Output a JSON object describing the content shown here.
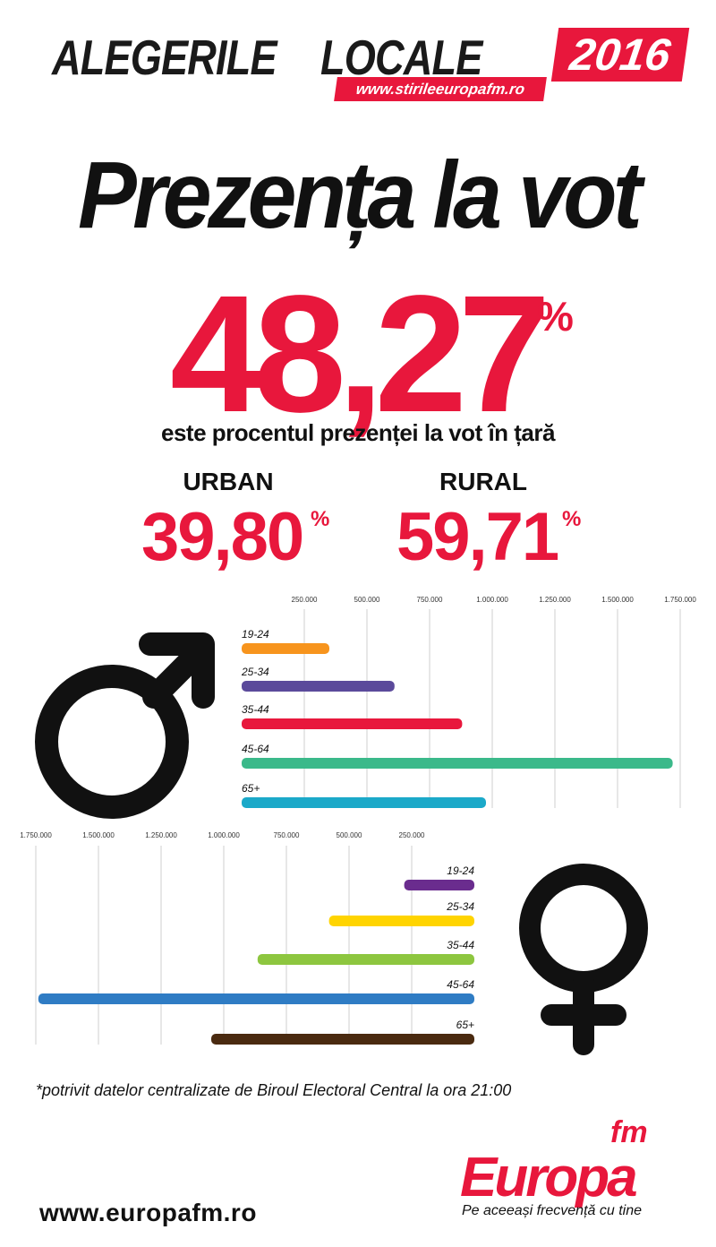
{
  "header": {
    "title_word1": "ALEGERILE",
    "title_word2": "LOCALE",
    "year": "2016",
    "url": "www.stirileeuropafm.ro"
  },
  "title": "Prezența la vot",
  "overall": {
    "value": "48,27",
    "unit": "%",
    "caption": "este procentul prezenței la vot în țară"
  },
  "urban": {
    "label": "URBAN",
    "value": "39,80",
    "unit": "%"
  },
  "rural": {
    "label": "RURAL",
    "value": "59,71",
    "unit": "%"
  },
  "chart_data": [
    {
      "type": "bar",
      "orientation": "horizontal",
      "direction": "left-to-right",
      "group": "male",
      "icon": "male-symbol-icon",
      "categories": [
        "19-24",
        "25-34",
        "35-44",
        "45-64",
        "65+"
      ],
      "values": [
        350000,
        610000,
        880000,
        1720000,
        975000
      ],
      "colors": [
        "#f7941d",
        "#5b4a9b",
        "#e8173c",
        "#3bb98a",
        "#1ba9c9"
      ],
      "ticks": [
        250000,
        500000,
        750000,
        1000000,
        1250000,
        1500000,
        1750000
      ],
      "tick_labels": [
        "250.000",
        "500.000",
        "750.000",
        "1.000.000",
        "1.250.000",
        "1.500.000",
        "1.750.000"
      ],
      "xlim": [
        0,
        1750000
      ],
      "grid": true
    },
    {
      "type": "bar",
      "orientation": "horizontal",
      "direction": "right-to-left",
      "group": "female",
      "icon": "female-symbol-icon",
      "categories": [
        "19-24",
        "25-34",
        "35-44",
        "45-64",
        "65+"
      ],
      "values": [
        280000,
        580000,
        865000,
        1740000,
        1050000
      ],
      "colors": [
        "#6a2c8e",
        "#ffd400",
        "#8dc63f",
        "#2f7cc4",
        "#4a2a10"
      ],
      "ticks": [
        250000,
        500000,
        750000,
        1000000,
        1250000,
        1500000,
        1750000
      ],
      "tick_labels": [
        "250.000",
        "500.000",
        "750.000",
        "1.000.000",
        "1.250.000",
        "1.500.000",
        "1.750.000"
      ],
      "xlim": [
        0,
        1750000
      ],
      "grid": true
    }
  ],
  "footnote": "*potrivit datelor centralizate de Biroul Electoral Central la ora 21:00",
  "footer": {
    "site": "www.europafm.ro",
    "brand": "Europa",
    "brand_fm": "fm",
    "tagline": "Pe aceeași frecvență cu tine"
  }
}
